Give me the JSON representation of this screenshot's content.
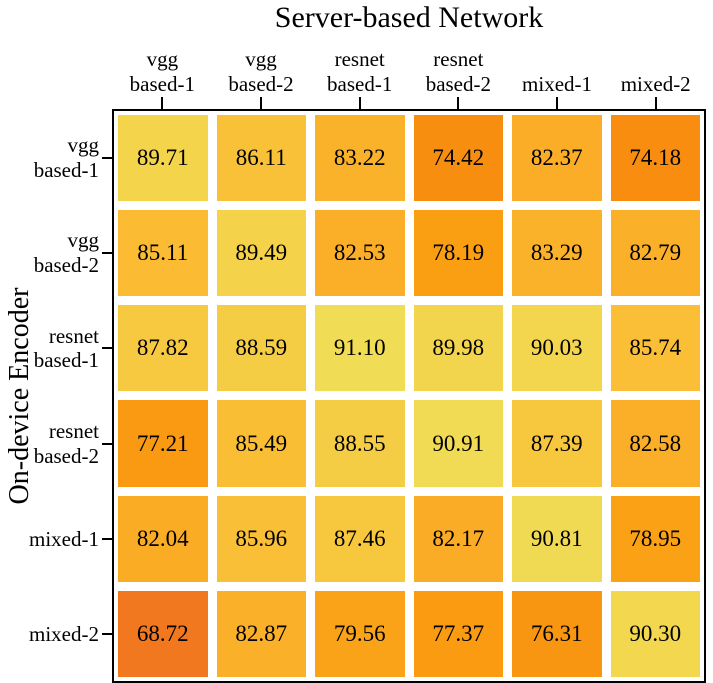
{
  "page": {
    "background": "#ffffff",
    "text_color": "#000000"
  },
  "chart_data": {
    "type": "heatmap",
    "title": "Server-based Network",
    "xlabel": "",
    "ylabel": "On-device Encoder",
    "legend": "none",
    "grid": false,
    "columns": [
      "vgg\nbased-1",
      "vgg\nbased-2",
      "resnet\nbased-1",
      "resnet\nbased-2",
      "mixed-1",
      "mixed-2"
    ],
    "rows": [
      "vgg\nbased-1",
      "vgg\nbased-2",
      "resnet\nbased-1",
      "resnet\nbased-2",
      "mixed-1",
      "mixed-2"
    ],
    "values": [
      [
        "89.71",
        "86.11",
        "83.22",
        "74.42",
        "82.37",
        "74.18"
      ],
      [
        "85.11",
        "89.49",
        "82.53",
        "78.19",
        "83.29",
        "82.79"
      ],
      [
        "87.82",
        "88.59",
        "91.10",
        "89.98",
        "90.03",
        "85.74"
      ],
      [
        "77.21",
        "85.49",
        "88.55",
        "90.91",
        "87.39",
        "82.58"
      ],
      [
        "82.04",
        "85.96",
        "87.46",
        "82.17",
        "90.81",
        "78.95"
      ],
      [
        "68.72",
        "82.87",
        "79.56",
        "77.37",
        "76.31",
        "90.30"
      ]
    ],
    "color_scale": {
      "vmin": 68.72,
      "vmax": 91.1,
      "stops": [
        {
          "t": 0.0,
          "color": "#F1781E"
        },
        {
          "t": 0.25,
          "color": "#F88E10"
        },
        {
          "t": 0.42,
          "color": "#FA9E12"
        },
        {
          "t": 0.6,
          "color": "#FBAC26"
        },
        {
          "t": 0.73,
          "color": "#FBBC33"
        },
        {
          "t": 0.89,
          "color": "#F5CD44"
        },
        {
          "t": 1.0,
          "color": "#F1DC55"
        }
      ]
    },
    "cell_gap_color": "#ffffff",
    "cell_text_color": "#000000",
    "axes_border_color": "#000000"
  }
}
